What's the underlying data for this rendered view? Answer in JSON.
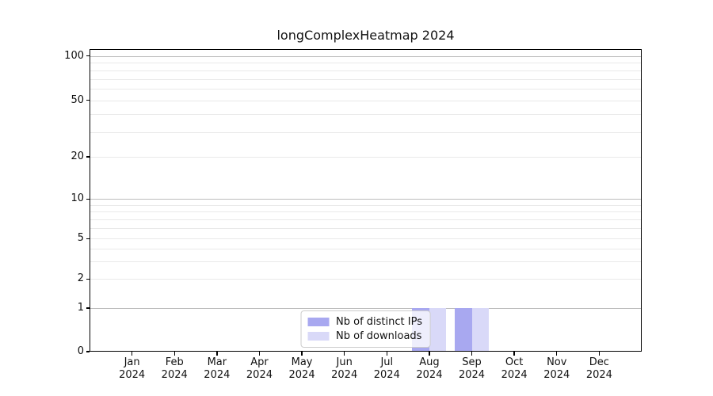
{
  "chart_data": {
    "type": "bar",
    "title": "longComplexHeatmap 2024",
    "categories": [
      "Jan 2024",
      "Feb 2024",
      "Mar 2024",
      "Apr 2024",
      "May 2024",
      "Jun 2024",
      "Jul 2024",
      "Aug 2024",
      "Sep 2024",
      "Oct 2024",
      "Nov 2024",
      "Dec 2024"
    ],
    "series": [
      {
        "name": "Nb of distinct IPs",
        "color": "#a8a8f0",
        "values": [
          0,
          0,
          0,
          0,
          0,
          0,
          0,
          1,
          1,
          0,
          0,
          0
        ]
      },
      {
        "name": "Nb of downloads",
        "color": "#d9d9f8",
        "values": [
          0,
          0,
          0,
          0,
          0,
          0,
          0,
          1,
          1,
          0,
          0,
          0
        ]
      }
    ],
    "y_axis": {
      "scale": "log-like (linear below 1)",
      "tick_labels": [
        0,
        1,
        2,
        5,
        10,
        20,
        50,
        100
      ],
      "major_gridlines": [
        100,
        10,
        1
      ],
      "minor_gridlines": [
        90,
        80,
        70,
        60,
        50,
        40,
        30,
        20,
        9,
        8,
        7,
        6,
        5,
        4,
        3,
        2
      ],
      "range_top": 120
    },
    "x_axis": {
      "year": "2024"
    },
    "legend": {
      "position": "lower center"
    },
    "grid": true
  }
}
